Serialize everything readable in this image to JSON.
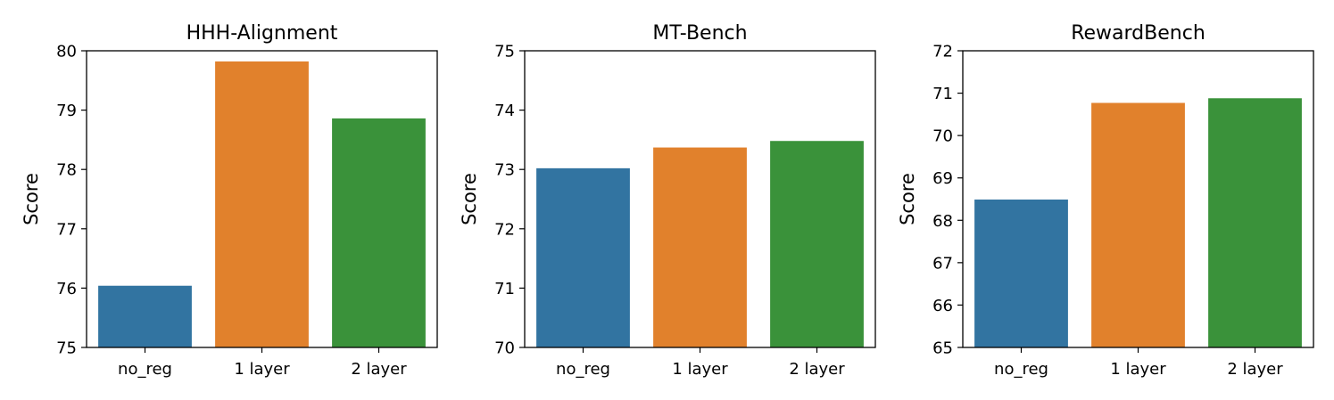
{
  "chart_data": [
    {
      "type": "bar",
      "title": "HHH-Alignment",
      "xlabel": "",
      "ylabel": "Score",
      "categories": [
        "no_reg",
        "1 layer",
        "2 layer"
      ],
      "values": [
        76.04,
        79.82,
        78.86
      ],
      "colors": [
        "#3274a1",
        "#e1812c",
        "#3a923a"
      ],
      "ylim": [
        75,
        80
      ],
      "yticks": [
        "75",
        "76",
        "77",
        "78",
        "79",
        "80"
      ],
      "grid": false,
      "legend": "none"
    },
    {
      "type": "bar",
      "title": "MT-Bench",
      "xlabel": "",
      "ylabel": "Score",
      "categories": [
        "no_reg",
        "1 layer",
        "2 layer"
      ],
      "values": [
        73.02,
        73.37,
        73.48
      ],
      "colors": [
        "#3274a1",
        "#e1812c",
        "#3a923a"
      ],
      "ylim": [
        70,
        75
      ],
      "yticks": [
        "70",
        "71",
        "72",
        "73",
        "74",
        "75"
      ],
      "grid": false,
      "legend": "none"
    },
    {
      "type": "bar",
      "title": "RewardBench",
      "xlabel": "",
      "ylabel": "Score",
      "categories": [
        "no_reg",
        "1 layer",
        "2 layer"
      ],
      "values": [
        68.49,
        70.77,
        70.88
      ],
      "colors": [
        "#3274a1",
        "#e1812c",
        "#3a923a"
      ],
      "ylim": [
        65,
        72
      ],
      "yticks": [
        "65",
        "66",
        "67",
        "68",
        "69",
        "70",
        "71",
        "72"
      ],
      "grid": false,
      "legend": "none"
    }
  ]
}
